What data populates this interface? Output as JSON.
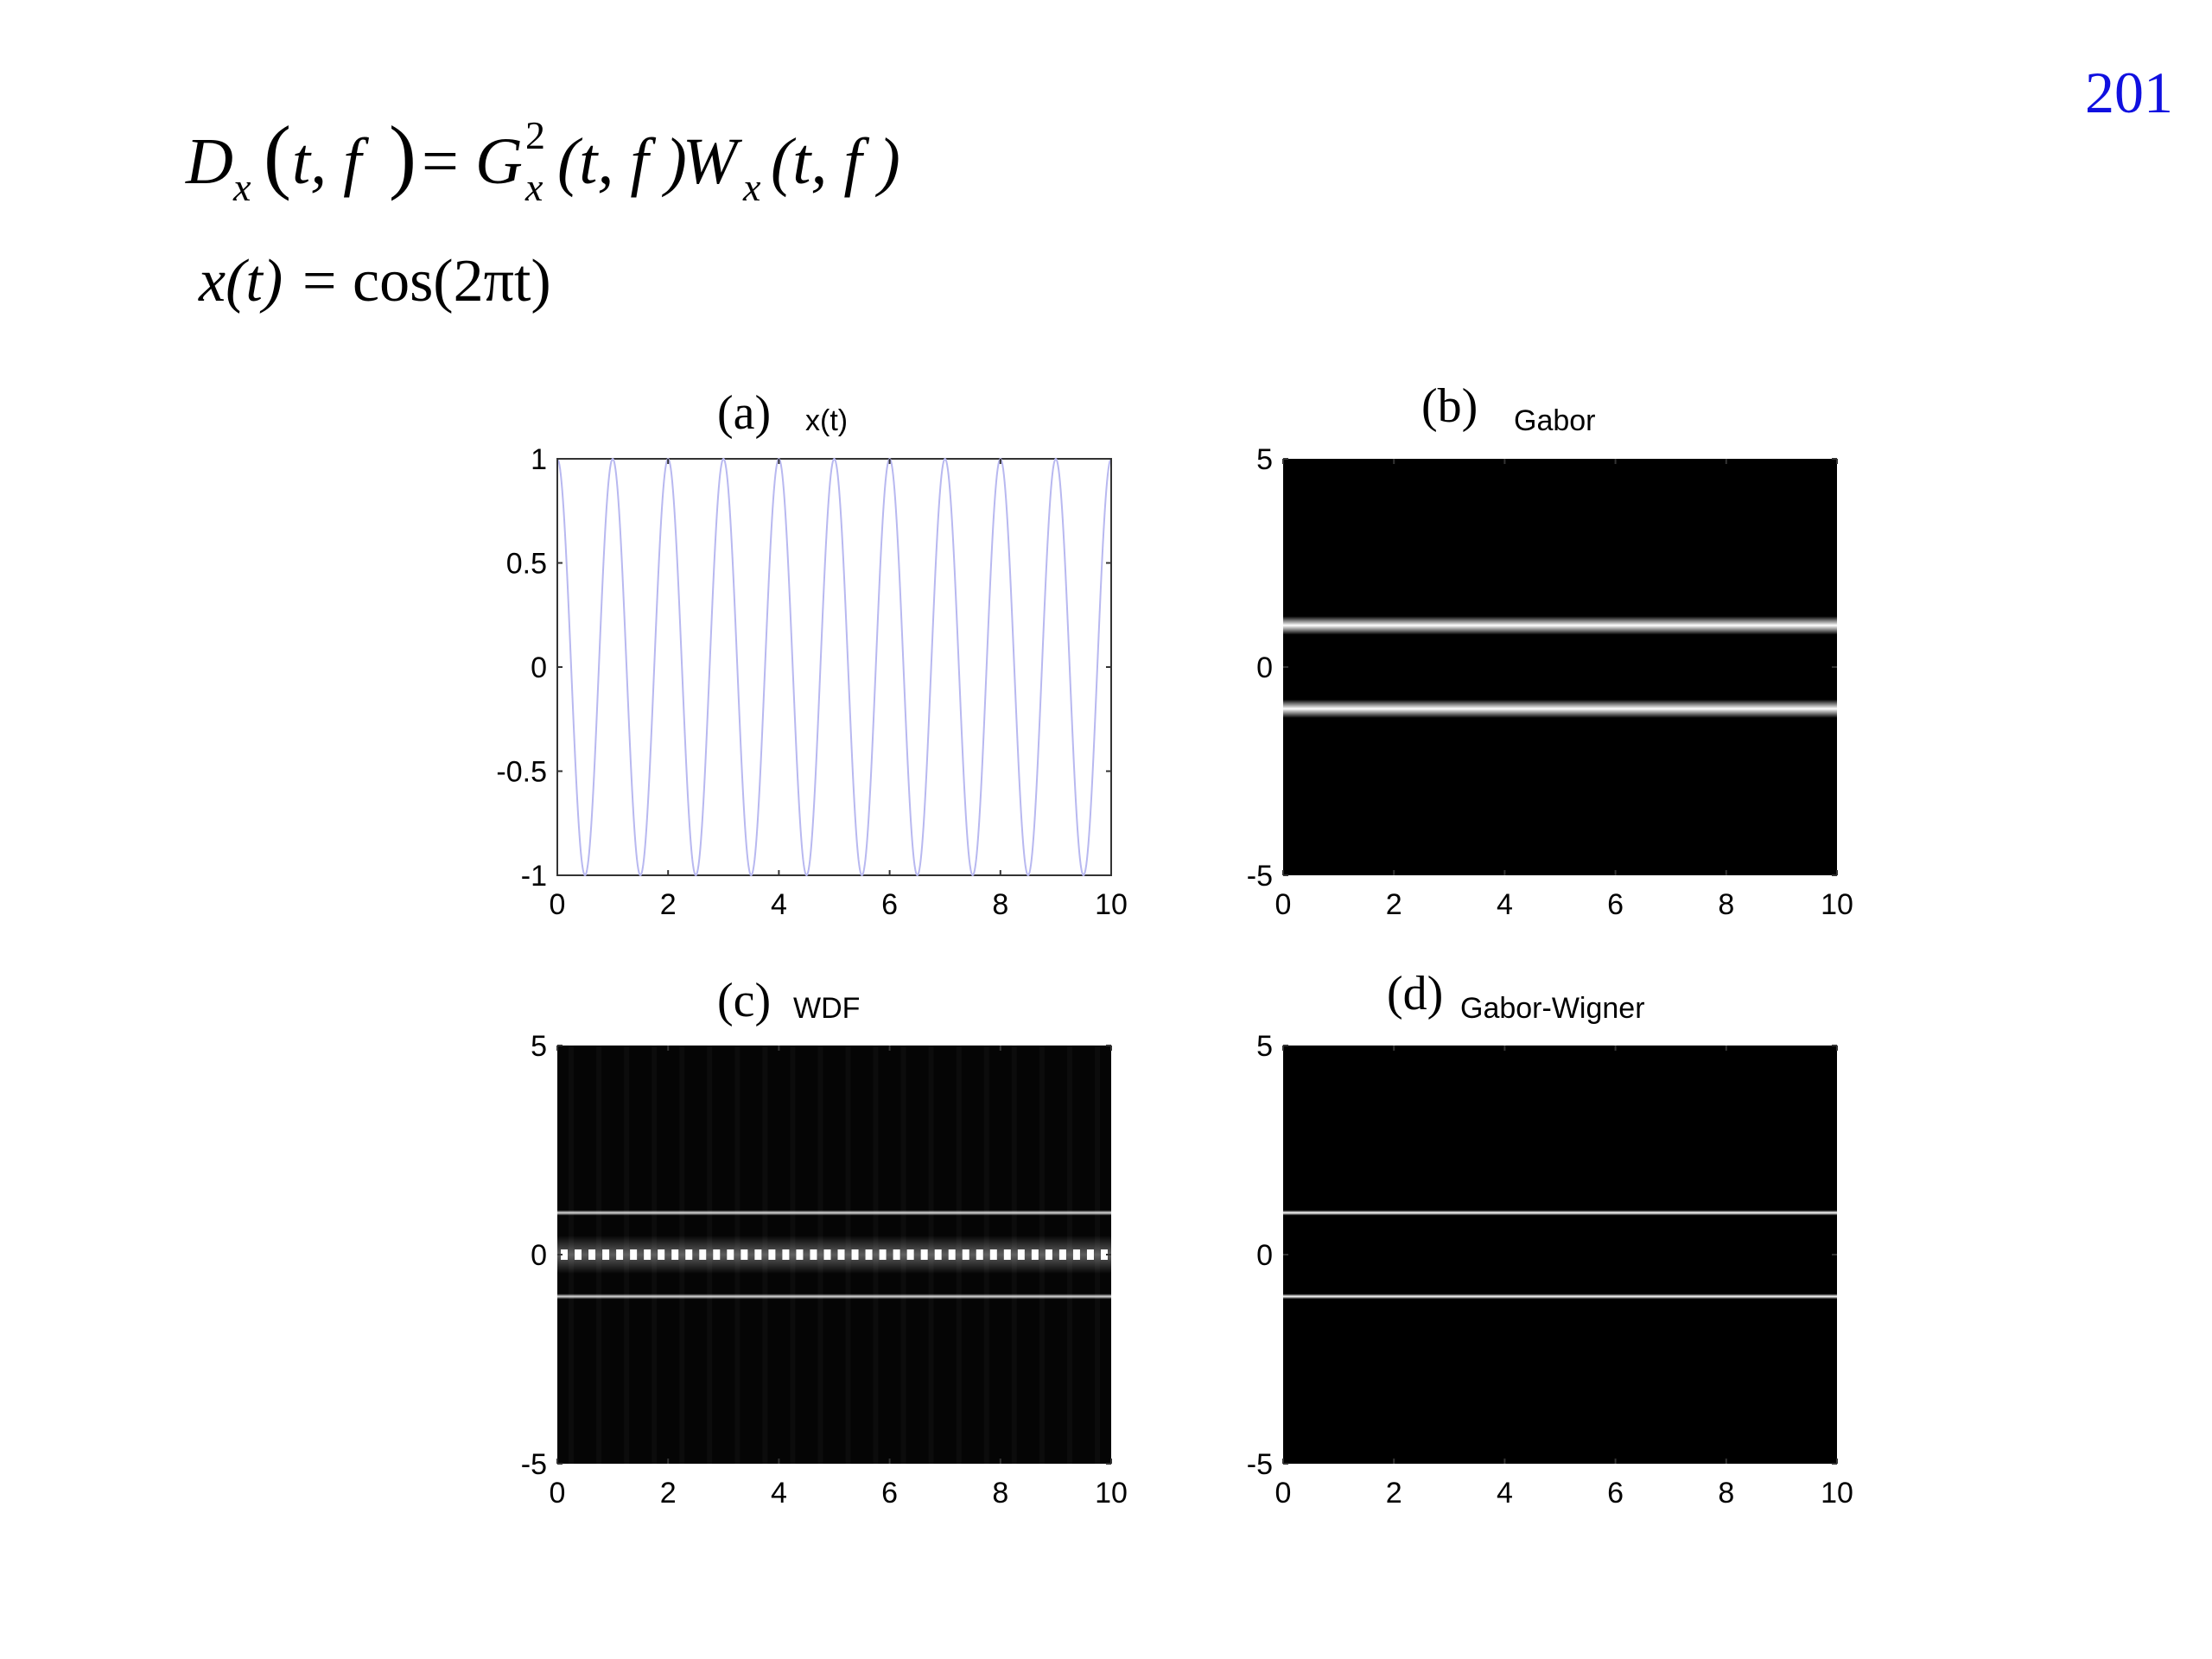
{
  "page_number": "201",
  "equations": {
    "main": {
      "lhs_symbol": "D",
      "lhs_sub": "x",
      "lhs_args": "t, f",
      "equals": "=",
      "g_symbol": "G",
      "g_sub": "x",
      "g_sup": "2",
      "g_args": "(t, f )",
      "w_symbol": "W",
      "w_sub": "x",
      "w_args": "(t, f )"
    },
    "signal": {
      "lhs": "x(t)",
      "equals": "=",
      "rhs": "cos(2πt)"
    }
  },
  "colors": {
    "signal_line": "#b8b8f0",
    "image_background": "#000000",
    "image_line": "#ffffff",
    "page_number": "#1010e0"
  },
  "chart_data": [
    {
      "type": "line",
      "panel_label": "(a)",
      "title": "x(t)",
      "xlim": [
        0,
        10
      ],
      "ylim": [
        -1,
        1
      ],
      "x_ticks": [
        "0",
        "2",
        "4",
        "6",
        "8",
        "10"
      ],
      "y_ticks": [
        "1",
        "0.5",
        "0",
        "-0.5",
        "-1"
      ],
      "function": "cos(2πt)",
      "frequency": 1
    },
    {
      "type": "heatmap",
      "panel_label": "(b)",
      "title": "Gabor",
      "xlim": [
        0,
        10
      ],
      "ylim": [
        -5,
        5
      ],
      "x_ticks": [
        "0",
        "2",
        "4",
        "6",
        "8",
        "10"
      ],
      "y_ticks": [
        "5",
        "0",
        "-5"
      ],
      "bands": [
        {
          "f": 1,
          "width": 0.22,
          "intensity": 1.0
        },
        {
          "f": -1,
          "width": 0.22,
          "intensity": 1.0
        }
      ],
      "cross_term": false
    },
    {
      "type": "heatmap",
      "panel_label": "(c)",
      "title": "WDF",
      "xlim": [
        0,
        10
      ],
      "ylim": [
        -5,
        5
      ],
      "x_ticks": [
        "0",
        "2",
        "4",
        "6",
        "8",
        "10"
      ],
      "y_ticks": [
        "5",
        "0",
        "-5"
      ],
      "bands": [
        {
          "f": 1,
          "width": 0.06,
          "intensity": 0.9
        },
        {
          "f": -1,
          "width": 0.06,
          "intensity": 0.9
        }
      ],
      "cross_term": true,
      "cross_term_f": 0
    },
    {
      "type": "heatmap",
      "panel_label": "(d)",
      "title": "Gabor-Wigner",
      "xlim": [
        0,
        10
      ],
      "ylim": [
        -5,
        5
      ],
      "x_ticks": [
        "0",
        "2",
        "4",
        "6",
        "8",
        "10"
      ],
      "y_ticks": [
        "5",
        "0",
        "-5"
      ],
      "bands": [
        {
          "f": 1,
          "width": 0.05,
          "intensity": 1.0
        },
        {
          "f": -1,
          "width": 0.05,
          "intensity": 1.0
        }
      ],
      "cross_term": false
    }
  ]
}
